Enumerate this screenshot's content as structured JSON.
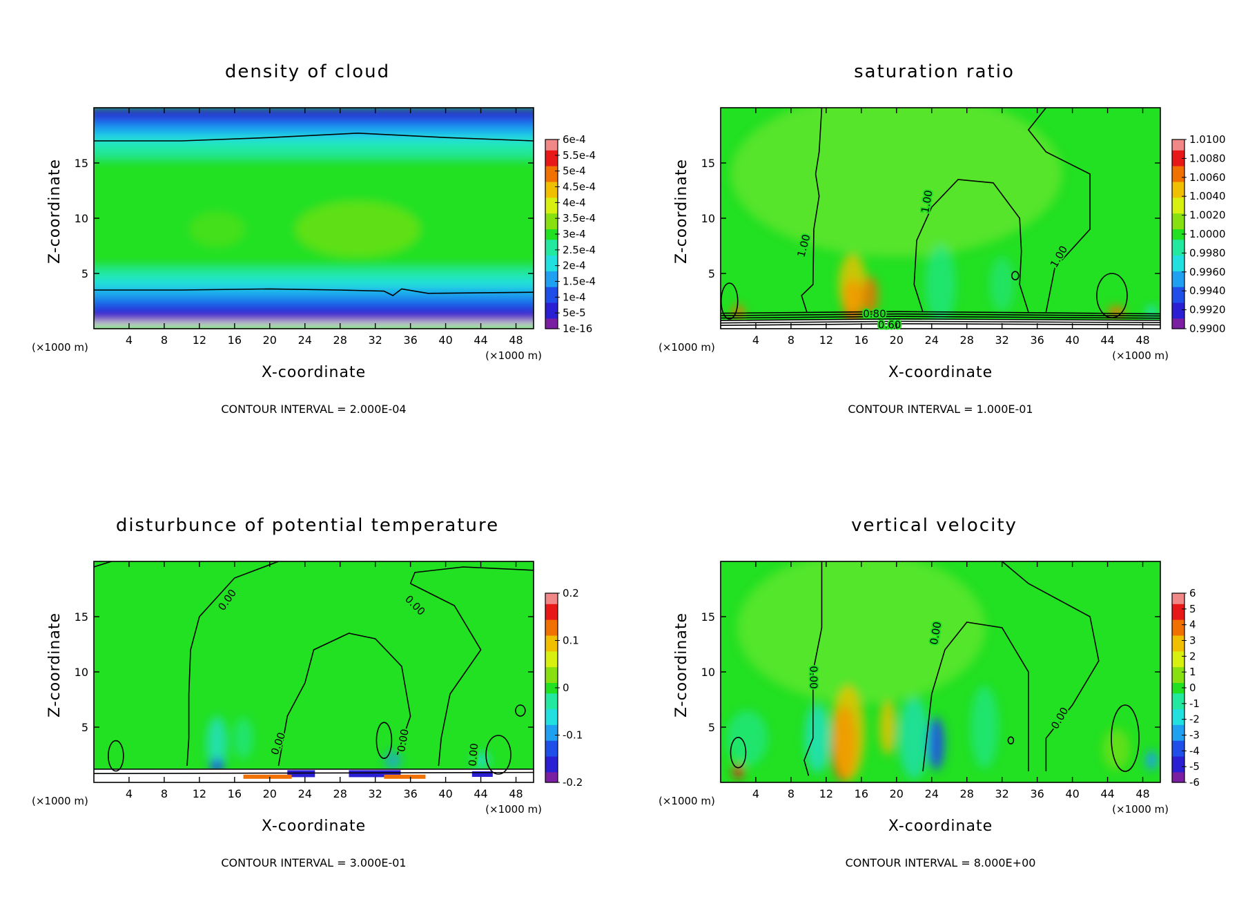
{
  "chart_data": [
    {
      "type": "heatmap",
      "title": "density of cloud",
      "xlabel": "X-coordinate",
      "ylabel": "Z-coordinate",
      "x_unit_left": "(×1000 m)",
      "x_unit_right": "(×1000 m)",
      "xlim": [
        0,
        50
      ],
      "ylim": [
        0,
        20
      ],
      "x_ticks": [
        "4",
        "8",
        "12",
        "16",
        "20",
        "24",
        "28",
        "32",
        "36",
        "40",
        "44",
        "48"
      ],
      "y_ticks": [
        "5",
        "10",
        "15"
      ],
      "colorbar_labels": [
        "1e-16",
        "5e-5",
        "1e-4",
        "1.5e-4",
        "2e-4",
        "2.5e-4",
        "3e-4",
        "3.5e-4",
        "4e-4",
        "4.5e-4",
        "5e-4",
        "5.5e-4",
        "6e-4"
      ],
      "contour_labels": [],
      "footer": "CONTOUR INTERVAL = 2.000E-04"
    },
    {
      "type": "heatmap",
      "title": "saturation ratio",
      "xlabel": "X-coordinate",
      "ylabel": "Z-coordinate",
      "x_unit_left": "(×1000 m)",
      "x_unit_right": "(×1000 m)",
      "xlim": [
        0,
        50
      ],
      "ylim": [
        0,
        20
      ],
      "x_ticks": [
        "4",
        "8",
        "12",
        "16",
        "20",
        "24",
        "28",
        "32",
        "36",
        "40",
        "44",
        "48"
      ],
      "y_ticks": [
        "5",
        "10",
        "15"
      ],
      "colorbar_labels": [
        "0.9900",
        "0.9920",
        "0.9940",
        "0.9960",
        "0.9980",
        "1.0000",
        "1.0020",
        "1.0040",
        "1.0060",
        "1.0080",
        "1.0100"
      ],
      "contour_labels": [
        "1.00",
        "1.00",
        "1.00",
        "0.80",
        "0.60"
      ],
      "footer": "CONTOUR INTERVAL = 1.000E-01"
    },
    {
      "type": "heatmap",
      "title": "disturbunce of potential temperature",
      "xlabel": "X-coordinate",
      "ylabel": "Z-coordinate",
      "x_unit_left": "(×1000 m)",
      "x_unit_right": "(×1000 m)",
      "xlim": [
        0,
        50
      ],
      "ylim": [
        0,
        20
      ],
      "x_ticks": [
        "4",
        "8",
        "12",
        "16",
        "20",
        "24",
        "28",
        "32",
        "36",
        "40",
        "44",
        "48"
      ],
      "y_ticks": [
        "5",
        "10",
        "15"
      ],
      "colorbar_labels": [
        "-0.2",
        "-0.1",
        "0",
        "0.1",
        "0.2"
      ],
      "contour_labels": [
        "0.00",
        "0.00",
        "0.00",
        "0.00",
        "0.00"
      ],
      "footer": "CONTOUR INTERVAL = 3.000E-01"
    },
    {
      "type": "heatmap",
      "title": "vertical velocity",
      "xlabel": "X-coordinate",
      "ylabel": "Z-coordinate",
      "x_unit_left": "(×1000 m)",
      "x_unit_right": "(×1000 m)",
      "xlim": [
        0,
        50
      ],
      "ylim": [
        0,
        20
      ],
      "x_ticks": [
        "4",
        "8",
        "12",
        "16",
        "20",
        "24",
        "28",
        "32",
        "36",
        "40",
        "44",
        "48"
      ],
      "y_ticks": [
        "5",
        "10",
        "15"
      ],
      "colorbar_labels": [
        "-6",
        "-5",
        "-4",
        "-3",
        "-2",
        "-1",
        "0",
        "1",
        "2",
        "3",
        "4",
        "5",
        "6"
      ],
      "contour_labels": [
        "0.00",
        "0.00",
        "0.00"
      ],
      "footer": "CONTOUR INTERVAL = 8.000E+00"
    }
  ],
  "colors": {
    "palette": [
      "#7a1fa2",
      "#2a1fd2",
      "#1f4fe8",
      "#1fa0f0",
      "#22e0e0",
      "#22e8a0",
      "#22e022",
      "#88e010",
      "#d8f010",
      "#f0c000",
      "#f07000",
      "#e81818",
      "#f08888"
    ],
    "background_field": "#22e022",
    "contour": "#000000"
  }
}
